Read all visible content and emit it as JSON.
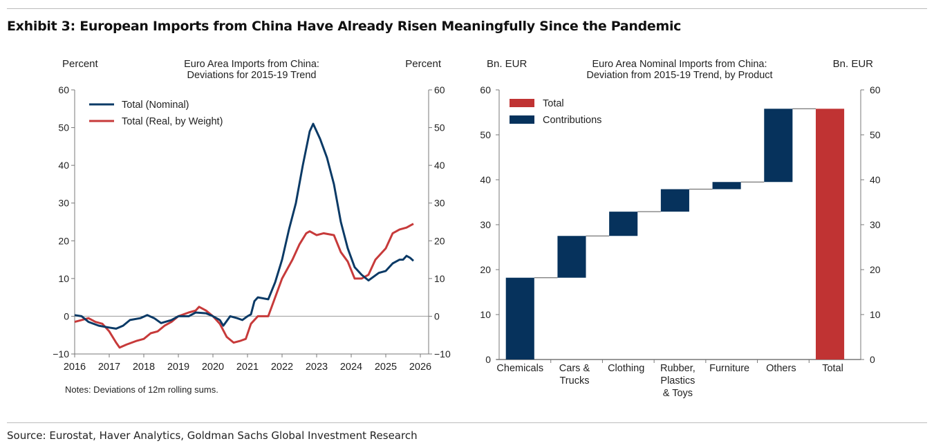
{
  "header": {
    "title": "Exhibit 3: European Imports from China Have Already Risen Meaningfully Since the Pandemic"
  },
  "footer": {
    "source": "Source: Eurostat, Haver Analytics, Goldman Sachs Global Investment Research"
  },
  "chart_data": [
    {
      "type": "line",
      "title_lines": [
        "Euro Area Imports from China:",
        "Deviations for 2015-19 Trend"
      ],
      "ylabel_left": "Percent",
      "ylabel_right": "Percent",
      "ylim": [
        -10,
        60
      ],
      "yticks": [
        -10,
        0,
        10,
        20,
        30,
        40,
        50,
        60
      ],
      "xlim": [
        2016,
        2026
      ],
      "xticks": [
        2016,
        2017,
        2018,
        2019,
        2020,
        2021,
        2022,
        2023,
        2024,
        2025,
        2026
      ],
      "note": "Notes: Deviations of 12m rolling sums.",
      "legend_position": "top-left",
      "series": [
        {
          "name": "Total (Nominal)",
          "color": "#0b3a66",
          "points": [
            [
              2016.0,
              0.3
            ],
            [
              2016.2,
              0
            ],
            [
              2016.4,
              -1.5
            ],
            [
              2016.7,
              -2.5
            ],
            [
              2017.0,
              -3
            ],
            [
              2017.2,
              -3.3
            ],
            [
              2017.4,
              -2.5
            ],
            [
              2017.6,
              -1
            ],
            [
              2017.9,
              -0.5
            ],
            [
              2018.1,
              0.3
            ],
            [
              2018.3,
              -0.5
            ],
            [
              2018.5,
              -1.8
            ],
            [
              2018.8,
              -1
            ],
            [
              2019.0,
              0
            ],
            [
              2019.3,
              0
            ],
            [
              2019.5,
              1
            ],
            [
              2019.8,
              0.8
            ],
            [
              2020.0,
              0
            ],
            [
              2020.2,
              -1
            ],
            [
              2020.3,
              -2.5
            ],
            [
              2020.5,
              0
            ],
            [
              2020.7,
              -0.5
            ],
            [
              2020.85,
              -1
            ],
            [
              2021.0,
              0
            ],
            [
              2021.1,
              0.5
            ],
            [
              2021.2,
              4
            ],
            [
              2021.3,
              5
            ],
            [
              2021.6,
              4.5
            ],
            [
              2021.8,
              9
            ],
            [
              2022.0,
              15
            ],
            [
              2022.2,
              23
            ],
            [
              2022.4,
              30
            ],
            [
              2022.6,
              40
            ],
            [
              2022.8,
              49
            ],
            [
              2022.9,
              51
            ],
            [
              2023.1,
              47
            ],
            [
              2023.3,
              42
            ],
            [
              2023.5,
              35
            ],
            [
              2023.7,
              25
            ],
            [
              2023.9,
              18
            ],
            [
              2024.1,
              13
            ],
            [
              2024.3,
              11
            ],
            [
              2024.5,
              9.5
            ],
            [
              2024.8,
              11.5
            ],
            [
              2025.0,
              12
            ],
            [
              2025.2,
              14
            ],
            [
              2025.4,
              15
            ],
            [
              2025.5,
              15
            ],
            [
              2025.6,
              16
            ],
            [
              2025.7,
              15.5
            ],
            [
              2025.8,
              14.7
            ]
          ]
        },
        {
          "name": "Total (Real, by Weight)",
          "color": "#c73a3a",
          "points": [
            [
              2016.0,
              -1.5
            ],
            [
              2016.2,
              -1
            ],
            [
              2016.4,
              -0.5
            ],
            [
              2016.6,
              -1.5
            ],
            [
              2016.8,
              -2
            ],
            [
              2017.0,
              -4
            ],
            [
              2017.2,
              -7
            ],
            [
              2017.3,
              -8.3
            ],
            [
              2017.5,
              -7.5
            ],
            [
              2017.8,
              -6.5
            ],
            [
              2018.0,
              -6
            ],
            [
              2018.2,
              -4.5
            ],
            [
              2018.4,
              -4
            ],
            [
              2018.6,
              -2.5
            ],
            [
              2018.8,
              -1.5
            ],
            [
              2019.0,
              0
            ],
            [
              2019.3,
              1
            ],
            [
              2019.5,
              1.5
            ],
            [
              2019.6,
              2.5
            ],
            [
              2019.8,
              1.5
            ],
            [
              2020.0,
              0
            ],
            [
              2020.2,
              -2
            ],
            [
              2020.4,
              -5.5
            ],
            [
              2020.6,
              -7
            ],
            [
              2020.8,
              -6.5
            ],
            [
              2020.95,
              -6
            ],
            [
              2021.1,
              -2
            ],
            [
              2021.3,
              0
            ],
            [
              2021.6,
              0
            ],
            [
              2021.8,
              5
            ],
            [
              2022.0,
              10
            ],
            [
              2022.3,
              15
            ],
            [
              2022.5,
              19
            ],
            [
              2022.7,
              22
            ],
            [
              2022.8,
              22.5
            ],
            [
              2023.0,
              21.5
            ],
            [
              2023.2,
              22
            ],
            [
              2023.5,
              21.5
            ],
            [
              2023.7,
              17
            ],
            [
              2023.9,
              14.5
            ],
            [
              2024.1,
              10
            ],
            [
              2024.3,
              10
            ],
            [
              2024.5,
              11
            ],
            [
              2024.7,
              15
            ],
            [
              2025.0,
              18
            ],
            [
              2025.2,
              22
            ],
            [
              2025.4,
              23
            ],
            [
              2025.6,
              23.5
            ],
            [
              2025.8,
              24.5
            ]
          ]
        }
      ]
    },
    {
      "type": "bar",
      "subtype": "waterfall",
      "title_lines": [
        "Euro Area Nominal Imports from China:",
        "Deviation from 2015-19 Trend, by Product"
      ],
      "ylabel_left": "Bn. EUR",
      "ylabel_right": "Bn. EUR",
      "ylim": [
        0,
        60
      ],
      "yticks": [
        0,
        10,
        20,
        30,
        40,
        50,
        60
      ],
      "legend_position": "top-left",
      "legend": [
        {
          "name": "Total",
          "color": "#c03333"
        },
        {
          "name": "Contributions",
          "color": "#06325c"
        }
      ],
      "categories": [
        [
          "Chemicals"
        ],
        [
          "Cars &",
          "Trucks"
        ],
        [
          "Clothing"
        ],
        [
          "Rubber,",
          "Plastics",
          "& Toys"
        ],
        [
          "Furniture"
        ],
        [
          "Others"
        ],
        [
          "Total"
        ]
      ],
      "bars": [
        {
          "start": 0,
          "end": 18.2,
          "kind": "Contributions"
        },
        {
          "start": 18.2,
          "end": 27.5,
          "kind": "Contributions"
        },
        {
          "start": 27.5,
          "end": 32.9,
          "kind": "Contributions"
        },
        {
          "start": 32.9,
          "end": 37.9,
          "kind": "Contributions"
        },
        {
          "start": 37.9,
          "end": 39.5,
          "kind": "Contributions"
        },
        {
          "start": 39.5,
          "end": 55.8,
          "kind": "Contributions"
        },
        {
          "start": 0,
          "end": 55.8,
          "kind": "Total"
        }
      ]
    }
  ]
}
